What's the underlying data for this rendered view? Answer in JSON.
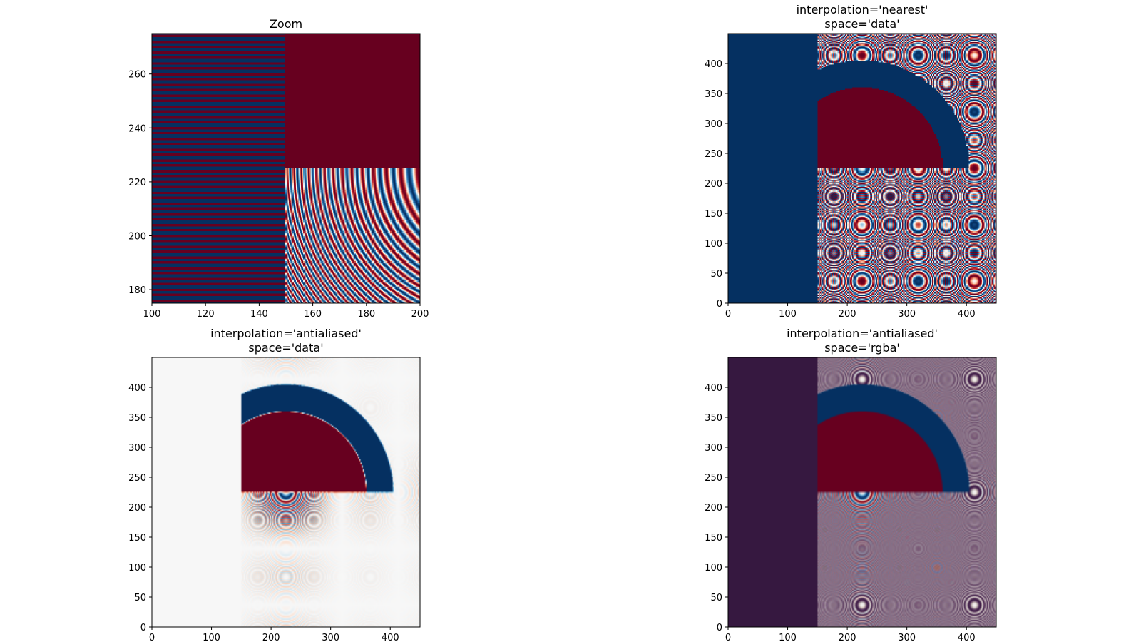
{
  "figure": {
    "background": "#ffffff"
  },
  "colormap": {
    "name": "RdBu",
    "dark_red": "#67001f",
    "mid_white": "#f7f7f7",
    "dark_blue": "#053061"
  },
  "chart_data": [
    {
      "type": "heatmap",
      "id": "zoom",
      "title_lines": [
        "Zoom"
      ],
      "interpolation": "nearest",
      "space": "data",
      "xlim": [
        100,
        200
      ],
      "ylim": [
        275,
        175
      ],
      "xticks": [
        100,
        120,
        140,
        160,
        180,
        200
      ],
      "yticks": [
        180,
        200,
        220,
        240,
        260
      ],
      "grid": false
    },
    {
      "type": "heatmap",
      "id": "nearest-data",
      "title_lines": [
        "interpolation='nearest'",
        "space='data'"
      ],
      "interpolation": "nearest",
      "space": "data",
      "xlim": [
        0,
        450
      ],
      "ylim": [
        450,
        0
      ],
      "xticks": [
        0,
        100,
        200,
        300,
        400
      ],
      "yticks": [
        0,
        50,
        100,
        150,
        200,
        250,
        300,
        350,
        400
      ],
      "grid": false
    },
    {
      "type": "heatmap",
      "id": "antialiased-data",
      "title_lines": [
        "interpolation='antialiased'",
        "space='data'"
      ],
      "interpolation": "antialiased",
      "space": "data",
      "xlim": [
        0,
        450
      ],
      "ylim": [
        450,
        0
      ],
      "xticks": [
        0,
        100,
        200,
        300,
        400
      ],
      "yticks": [
        0,
        50,
        100,
        150,
        200,
        250,
        300,
        350,
        400
      ],
      "grid": false
    },
    {
      "type": "heatmap",
      "id": "antialiased-rgba",
      "title_lines": [
        "interpolation='antialiased'",
        "space='rgba'"
      ],
      "interpolation": "antialiased",
      "space": "rgba",
      "xlim": [
        0,
        450
      ],
      "ylim": [
        450,
        0
      ],
      "xticks": [
        0,
        100,
        200,
        300,
        400
      ],
      "yticks": [
        0,
        50,
        100,
        150,
        200,
        250,
        300,
        350,
        400
      ],
      "grid": false
    }
  ]
}
